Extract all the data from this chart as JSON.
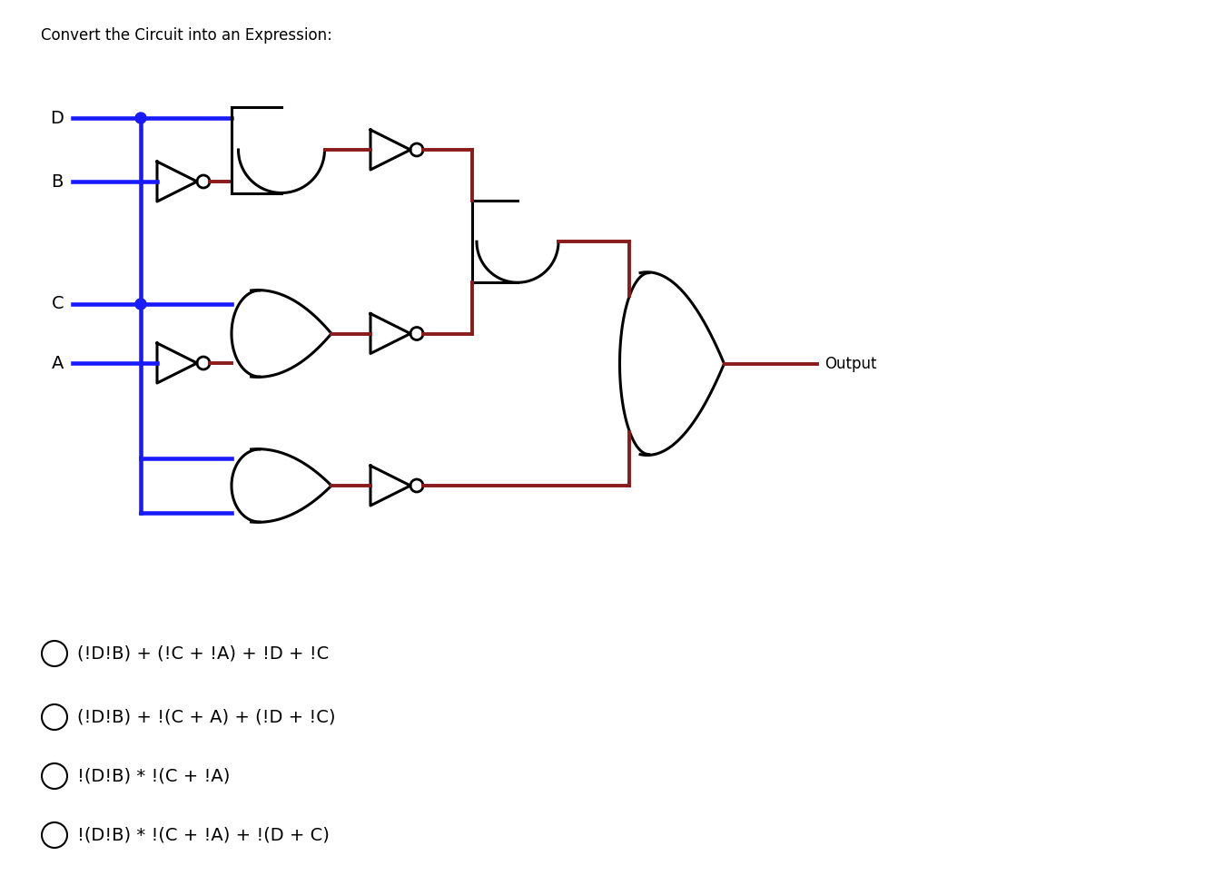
{
  "title": "Convert the Circuit into an Expression:",
  "title_fontsize": 12,
  "bg_color": "#ffffff",
  "blue_color": "#1a1aff",
  "red_color": "#8b1a1a",
  "black_color": "#000000",
  "wire_lw": 2.8,
  "gate_lw": 2.2,
  "options": [
    "(!D!B) + (!C + !A) + !D + !C",
    "(!D!B) + !(C + A) + (!D + !C)",
    "!(D!B) * !(C + !A)",
    "!(D!B) * !(C + !A) + !(D + C)"
  ]
}
